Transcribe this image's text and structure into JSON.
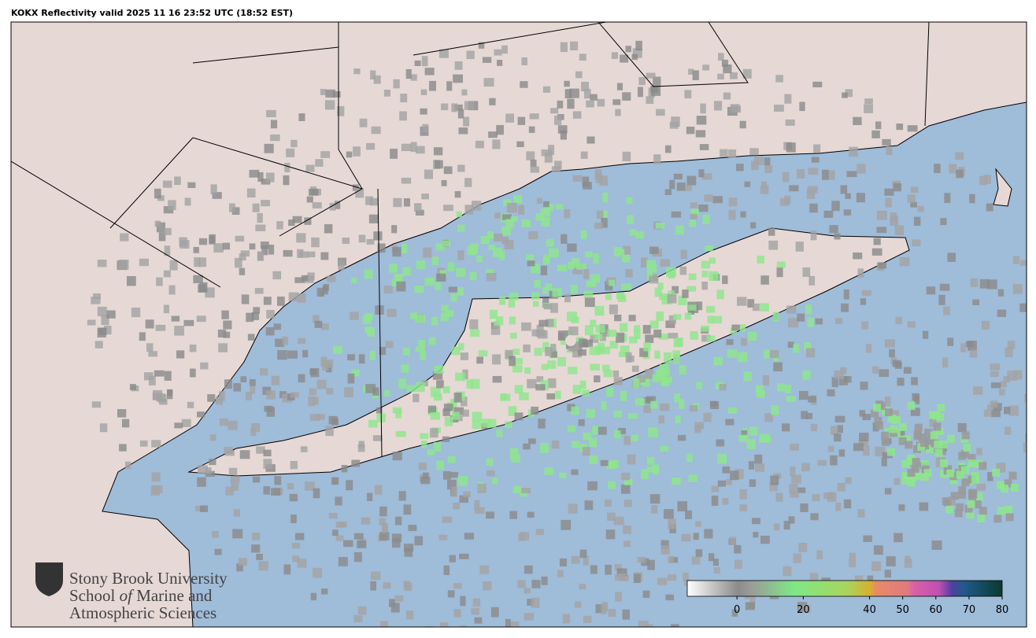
{
  "title": "KOKX Reflectivity valid 2025 11 16 23:52 UTC (18:52 EST)",
  "colorbar": {
    "lim": [
      -15,
      80
    ],
    "ticks": [
      0,
      20,
      40,
      50,
      60,
      70,
      80
    ]
  },
  "logo": {
    "line1": "Stony Brook University",
    "line2": [
      "School ",
      "of",
      " Marine and"
    ],
    "line3": "Atmospheric Sciences"
  }
}
